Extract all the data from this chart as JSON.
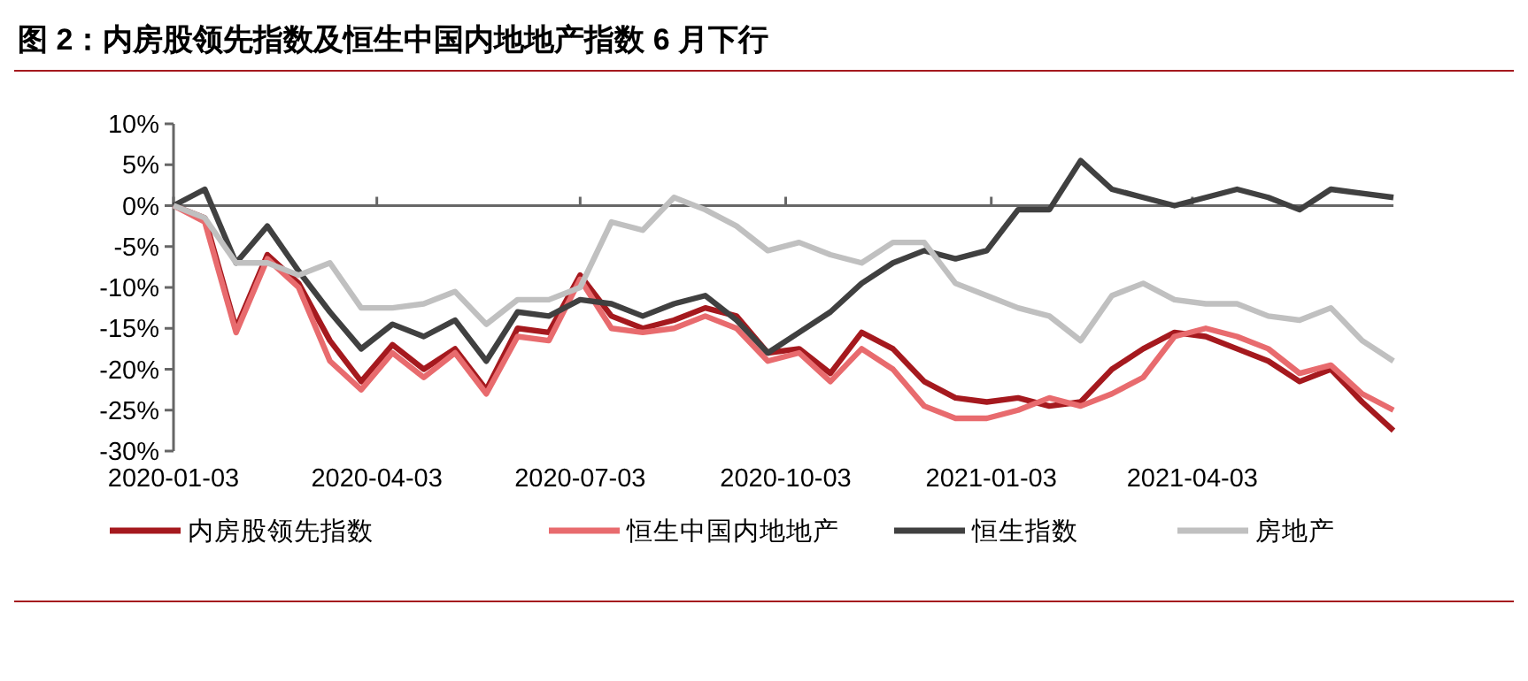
{
  "chart_data": {
    "type": "line",
    "title": "图 2：内房股领先指数及恒生中国内地地产指数 6 月下行",
    "x": [
      "2020-01-03",
      "2020-01-17",
      "2020-01-31",
      "2020-02-14",
      "2020-02-28",
      "2020-03-13",
      "2020-03-27",
      "2020-04-10",
      "2020-04-24",
      "2020-05-08",
      "2020-05-22",
      "2020-06-05",
      "2020-06-19",
      "2020-07-03",
      "2020-07-17",
      "2020-07-31",
      "2020-08-14",
      "2020-08-28",
      "2020-09-11",
      "2020-09-25",
      "2020-10-09",
      "2020-10-23",
      "2020-11-06",
      "2020-11-20",
      "2020-12-04",
      "2020-12-18",
      "2021-01-01",
      "2021-01-15",
      "2021-01-29",
      "2021-02-12",
      "2021-02-26",
      "2021-03-12",
      "2021-03-26",
      "2021-04-09",
      "2021-04-23",
      "2021-05-07",
      "2021-05-21",
      "2021-06-04",
      "2021-06-18",
      "2021-07-02"
    ],
    "series": [
      {
        "name": "内房股领先指数",
        "color": "#a5191e",
        "values": [
          0,
          -1.5,
          -15,
          -6,
          -9.5,
          -16.5,
          -21.5,
          -17,
          -20,
          -17.5,
          -22.5,
          -15,
          -15.5,
          -8.5,
          -13.5,
          -15,
          -14,
          -12.5,
          -13.5,
          -18,
          -17.5,
          -20.5,
          -15.5,
          -17.5,
          -21.5,
          -23.5,
          -24,
          -23.5,
          -24.5,
          -24,
          -20,
          -17.5,
          -15.5,
          -16,
          -17.5,
          -19,
          -21.5,
          -20,
          -24,
          -27.5
        ]
      },
      {
        "name": "恒生中国内地地产",
        "color": "#e86b6e",
        "values": [
          0,
          -2,
          -15.5,
          -6.5,
          -10,
          -19,
          -22.5,
          -18,
          -21,
          -18,
          -23,
          -16,
          -16.5,
          -9,
          -15,
          -15.5,
          -15,
          -13.5,
          -15,
          -19,
          -18,
          -21.5,
          -17.5,
          -20,
          -24.5,
          -26,
          -26,
          -25,
          -23.5,
          -24.5,
          -23,
          -21,
          -16,
          -15,
          -16,
          -17.5,
          -20.5,
          -19.5,
          -23,
          -25
        ]
      },
      {
        "name": "恒生指数",
        "color": "#404040",
        "values": [
          0,
          2,
          -7,
          -2.5,
          -8,
          -13,
          -17.5,
          -14.5,
          -16,
          -14,
          -19,
          -13,
          -13.5,
          -11.5,
          -12,
          -13.5,
          -12,
          -11,
          -14,
          -18,
          -15.5,
          -13,
          -9.5,
          -7,
          -5.5,
          -6.5,
          -5.5,
          -0.5,
          -0.5,
          5.5,
          2,
          1,
          0,
          1,
          2,
          1,
          -0.5,
          2,
          1.5,
          1
        ]
      },
      {
        "name": "房地产",
        "color": "#c0c0c0",
        "values": [
          0,
          -1.5,
          -7,
          -7,
          -8.5,
          -7,
          -12.5,
          -12.5,
          -12,
          -10.5,
          -14.5,
          -11.5,
          -11.5,
          -10,
          -2,
          -3,
          1,
          -0.5,
          -2.5,
          -5.5,
          -4.5,
          -6,
          -7,
          -4.5,
          -4.5,
          -9.5,
          -11,
          -12.5,
          -13.5,
          -16.5,
          -11,
          -9.5,
          -11.5,
          -12,
          -12,
          -13.5,
          -14,
          -12.5,
          -16.5,
          -19
        ]
      }
    ],
    "xlim": [
      "2020-01-03",
      "2021-07-02"
    ],
    "xticks": [
      "2020-01-03",
      "2020-04-03",
      "2020-07-03",
      "2020-10-03",
      "2021-01-03",
      "2021-04-03"
    ],
    "ylim": [
      -30,
      10
    ],
    "yticks": [
      {
        "value": -30,
        "label": "-30%"
      },
      {
        "value": -25,
        "label": "-25%"
      },
      {
        "value": -20,
        "label": "-20%"
      },
      {
        "value": -15,
        "label": "-15%"
      },
      {
        "value": -10,
        "label": "-10%"
      },
      {
        "value": -5,
        "label": "-5%"
      },
      {
        "value": 0,
        "label": "0%"
      },
      {
        "value": 5,
        "label": "5%"
      },
      {
        "value": 10,
        "label": "10%"
      }
    ],
    "legend": "bottom",
    "marker": "none",
    "line_style": "solid"
  }
}
